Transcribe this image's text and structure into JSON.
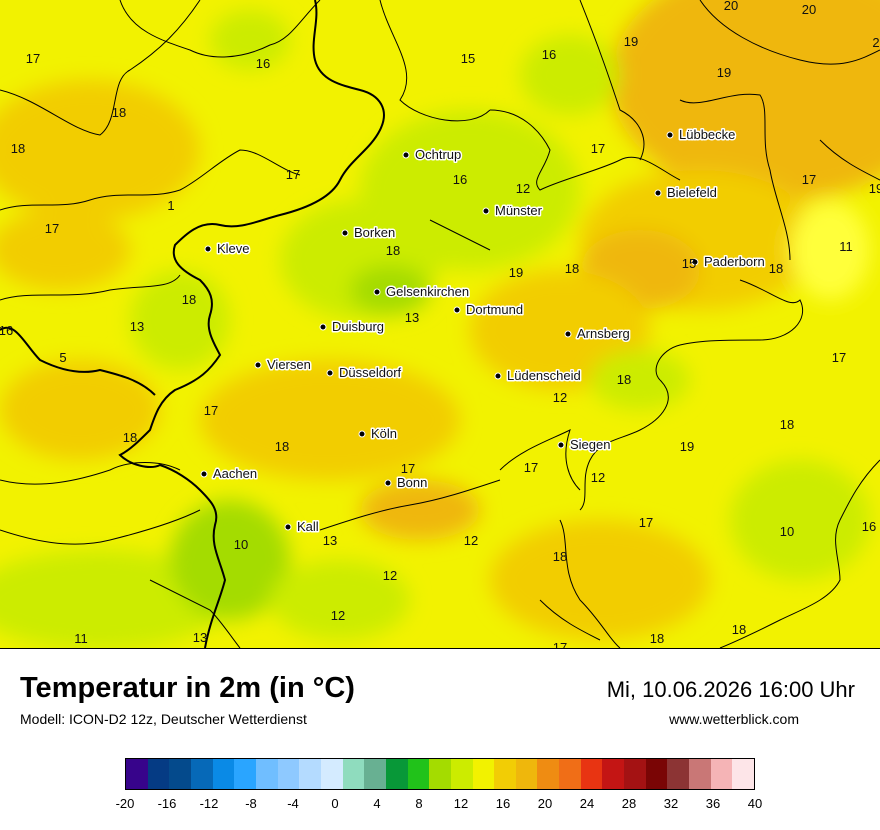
{
  "title": "Temperatur in 2m (in °C)",
  "model": "Modell: ICON-D2 12z, Deutscher Wetterdienst",
  "datetime": "Mi, 10.06.2026 16:00 Uhr",
  "website": "www.wetterblick.com",
  "colors": {
    "land_yellow": "#f2f200",
    "land_light_yellow": "#ffff3a",
    "lime": "#ccec00",
    "green": "#a4dc00",
    "gold": "#f2cd05",
    "orange": "#efb70c",
    "border": "#000000"
  },
  "cities": [
    {
      "name": "Lübbecke"
    },
    {
      "name": "Ochtrup"
    },
    {
      "name": "Bielefeld"
    },
    {
      "name": "Münster"
    },
    {
      "name": "Borken"
    },
    {
      "name": "Kleve"
    },
    {
      "name": "Paderborn"
    },
    {
      "name": "Gelsenkirchen"
    },
    {
      "name": "Dortmund"
    },
    {
      "name": "Duisburg"
    },
    {
      "name": "Arnsberg"
    },
    {
      "name": "Viersen"
    },
    {
      "name": "Düsseldorf"
    },
    {
      "name": "Lüdenscheid"
    },
    {
      "name": "Köln"
    },
    {
      "name": "Siegen"
    },
    {
      "name": "Aachen"
    },
    {
      "name": "Bonn"
    },
    {
      "name": "Kall"
    }
  ],
  "temperature_labels": [
    "20",
    "20",
    "2",
    "17",
    "16",
    "15",
    "16",
    "19",
    "19",
    "18",
    "18",
    "17",
    "17",
    "16",
    "12",
    "17",
    "19",
    "1",
    "17",
    "18",
    "11",
    "15",
    "19",
    "18",
    "18",
    "18",
    "13",
    "13",
    "16",
    "5",
    "17",
    "18",
    "12",
    "17",
    "18",
    "18",
    "18",
    "17",
    "19",
    "17",
    "12",
    "17",
    "10",
    "16",
    "10",
    "13",
    "12",
    "12",
    "18",
    "12",
    "11",
    "13",
    "17",
    "18",
    "18"
  ],
  "legend": {
    "colors": [
      "#37048b",
      "#053b84",
      "#044a8c",
      "#0669b8",
      "#0a8ae6",
      "#2aa5ff",
      "#70beff",
      "#8ec9ff",
      "#b4dbff",
      "#d4ebff",
      "#8fdcbe",
      "#68b092",
      "#089838",
      "#21c21a",
      "#a4dc00",
      "#ccec00",
      "#f2f200",
      "#f2cd05",
      "#efb70c",
      "#ef8c12",
      "#f06e17",
      "#e83412",
      "#c41514",
      "#a41213",
      "#7a0505",
      "#8c3434",
      "#c97776",
      "#f5b4b6",
      "#fde5e8"
    ],
    "tick_labels": [
      "-20",
      "-16",
      "-12",
      "-8",
      "-4",
      "0",
      "4",
      "8",
      "12",
      "16",
      "20",
      "24",
      "28",
      "32",
      "36",
      "40"
    ]
  }
}
